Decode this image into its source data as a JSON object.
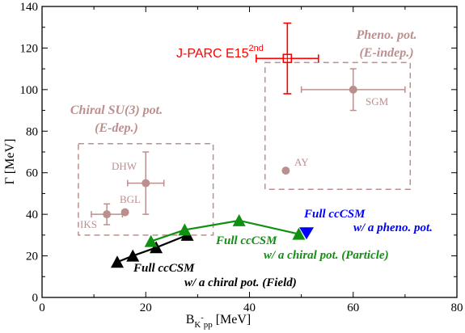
{
  "chart_data": {
    "type": "scatter",
    "xlabel": "B",
    "xlabel_sub": "K",
    "xlabel_sup": "-",
    "xlabel_sub2": "pp",
    "xlabel_unit": " [MeV]",
    "ylabel": "Γ [MeV]",
    "xlim": [
      0,
      80
    ],
    "ylim": [
      0,
      140
    ],
    "x_ticks": [
      "0",
      "20",
      "40",
      "60",
      "80"
    ],
    "x_tick_values": [
      0,
      20,
      40,
      60,
      80
    ],
    "y_ticks": [
      "0",
      "20",
      "40",
      "60",
      "80",
      "100",
      "120",
      "140"
    ],
    "y_tick_values": [
      0,
      20,
      40,
      60,
      80,
      100,
      120,
      140
    ],
    "grid": false,
    "colors": {
      "red": "#ff0000",
      "brown": "#bc8f8f",
      "green": "#109010",
      "black": "#000000",
      "blue": "#0000ff"
    },
    "experiment": {
      "label": "J-PARC E15",
      "label_sup": "2nd",
      "x": 47.3,
      "y": 115,
      "xerr": 6,
      "yerr": [
        17,
        17
      ]
    },
    "groups": [
      {
        "label_line1": "Chiral SU(3) pot.",
        "label_line2": "(E-dep.)",
        "box": {
          "x0": 7,
          "x1": 33,
          "y0": 30,
          "y1": 74
        },
        "points": [
          {
            "label": "IKS",
            "x": 12.5,
            "y": 40,
            "xerr": 3,
            "yerr": 5
          },
          {
            "label": "BGL",
            "x": 16,
            "y": 41,
            "xerr": 0,
            "yerr": 0
          },
          {
            "label": "DHW",
            "x": 20,
            "y": 55,
            "xerr": 3.5,
            "yerr": 15
          }
        ]
      },
      {
        "label_line1": "Pheno. pot.",
        "label_line2": "(E-indep.)",
        "box": {
          "x0": 43,
          "x1": 71,
          "y0": 52,
          "y1": 113
        },
        "points": [
          {
            "label": "AY",
            "x": 47,
            "y": 61,
            "xerr": 0,
            "yerr": 0
          },
          {
            "label": "SGM",
            "x": 60,
            "y": 100,
            "xerr": 10,
            "yerr": 10
          }
        ]
      }
    ],
    "series": [
      {
        "label_line1": "Full ccCSM",
        "label_line2": "w/ a chiral pot. (Field)",
        "color": "black",
        "x": [
          14.5,
          17.5,
          22,
          28
        ],
        "y": [
          17,
          20,
          24,
          30
        ]
      },
      {
        "label_line1": "Full ccCSM",
        "label_line2": "w/ a chiral pot. (Particle)",
        "color": "green",
        "x": [
          21,
          27.5,
          38,
          49.5
        ],
        "y": [
          27,
          32.5,
          37,
          30.5
        ]
      },
      {
        "label_line1": "Full ccCSM",
        "label_line2": "w/ a pheno. pot.",
        "color": "blue",
        "x": [
          51
        ],
        "y": [
          31
        ]
      }
    ]
  }
}
